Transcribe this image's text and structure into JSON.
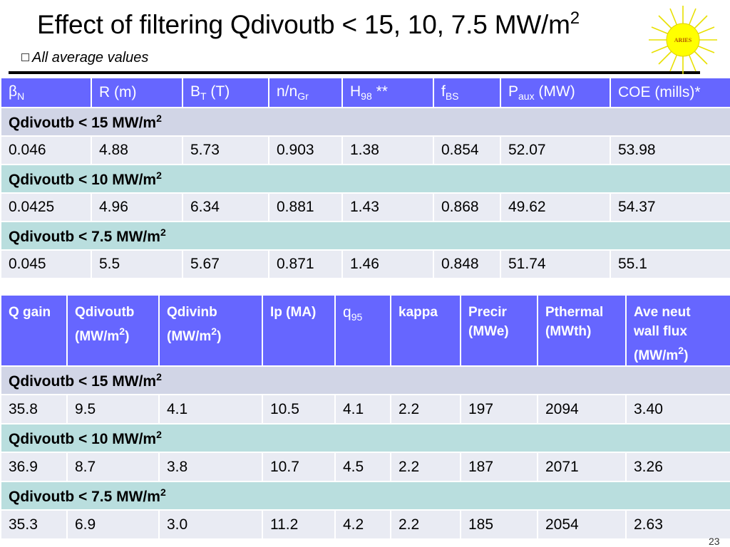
{
  "slide": {
    "title_main": "Effect of filtering Qdivoutb < 15, 10, 7.5 MW/m",
    "title_sup": "2",
    "subtitle": "All average values",
    "logo_text": "ARIES",
    "page_number": "23"
  },
  "table1": {
    "headers": [
      {
        "main": "β",
        "sub": "N",
        "rest": ""
      },
      {
        "main": "R (m)",
        "sub": "",
        "rest": ""
      },
      {
        "main": "B",
        "sub": "T",
        "rest": " (T)"
      },
      {
        "main": "n/n",
        "sub": "Gr",
        "rest": ""
      },
      {
        "main": "H",
        "sub": "98",
        "rest": " **"
      },
      {
        "main": "f",
        "sub": "BS",
        "rest": ""
      },
      {
        "main": "P",
        "sub": "aux",
        "rest": " (MW)"
      },
      {
        "main": "COE (mills)*",
        "sub": "",
        "rest": ""
      }
    ],
    "sections": [
      {
        "label": "Qdivoutb < 15 MW/m",
        "sup": "2",
        "row": [
          "0.046",
          "4.88",
          "5.73",
          "0.903",
          "1.38",
          "0.854",
          "52.07",
          "53.98"
        ]
      },
      {
        "label": "Qdivoutb < 10 MW/m",
        "sup": "2",
        "row": [
          "0.0425",
          "4.96",
          "6.34",
          "0.881",
          "1.43",
          "0.868",
          "49.62",
          "54.37"
        ]
      },
      {
        "label": "Qdivoutb < 7.5 MW/m",
        "sup": "2",
        "row": [
          "0.045",
          "5.5",
          "5.67",
          "0.871",
          "1.46",
          "0.848",
          "51.74",
          "55.1"
        ]
      }
    ]
  },
  "table2": {
    "headers": [
      {
        "line1": "Q gain",
        "line2": "",
        "line3": "",
        "sup": "",
        "tail": ""
      },
      {
        "line1": "Qdivoutb",
        "line2": "(MW/m",
        "line3": "",
        "sup": "2",
        "tail": ")"
      },
      {
        "line1": "Qdivinb",
        "line2": "(MW/m",
        "line3": "",
        "sup": "2",
        "tail": ")"
      },
      {
        "line1": "Ip (MA)",
        "line2": "",
        "line3": "",
        "sup": "",
        "tail": ""
      },
      {
        "line1": "q",
        "line2": "",
        "line3": "",
        "sup": "",
        "tail": "",
        "sub": "95"
      },
      {
        "line1": "kappa",
        "line2": "",
        "line3": "",
        "sup": "",
        "tail": ""
      },
      {
        "line1": "Precir",
        "line2": "(MWe)",
        "line3": "",
        "sup": "",
        "tail": ""
      },
      {
        "line1": "Pthermal",
        "line2": "(MWth)",
        "line3": "",
        "sup": "",
        "tail": ""
      },
      {
        "line1": "Ave neut",
        "line2": "wall flux",
        "line3": "(MW/m",
        "sup": "2",
        "tail": ")"
      }
    ],
    "sections": [
      {
        "label": "Qdivoutb < 15 MW/m",
        "sup": "2",
        "row": [
          "35.8",
          "9.5",
          "4.1",
          "10.5",
          "4.1",
          "2.2",
          "197",
          "2094",
          "3.40"
        ]
      },
      {
        "label": "Qdivoutb < 10 MW/m",
        "sup": "2",
        "row": [
          "36.9",
          "8.7",
          "3.8",
          "10.7",
          "4.5",
          "2.2",
          "187",
          "2071",
          "3.26"
        ]
      },
      {
        "label": "Qdivoutb < 7.5 MW/m",
        "sup": "2",
        "row": [
          "35.3",
          "6.9",
          "3.0",
          "11.2",
          "4.2",
          "2.2",
          "185",
          "2054",
          "2.63"
        ]
      }
    ]
  },
  "colors": {
    "header_blue": "#6666ff",
    "section_lavender": "#d1d5e6",
    "section_teal": "#b9dede",
    "data_row": "#e9ebf3"
  }
}
